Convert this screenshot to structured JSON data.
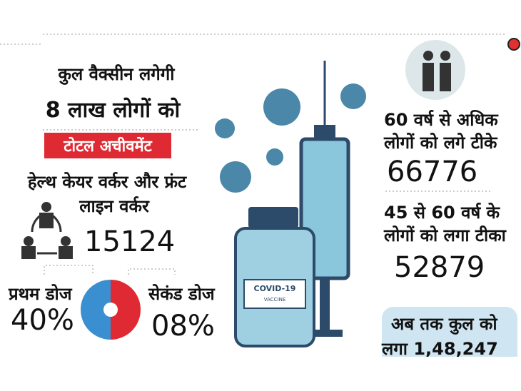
{
  "header": {
    "line1": "कुल वैक्सीन लगेगी",
    "line2": "8 लाख लोगों को"
  },
  "badge": "टोटल अचीवमेंट",
  "health_workers": {
    "label1": "हेल्थ केयर वर्कर और फ्रंट",
    "label2": "लाइन वर्कर",
    "count": "15124"
  },
  "doses": {
    "first_label": "प्रथम डोज",
    "first_value": "40%",
    "second_label": "सेकंड डोज",
    "second_value": "08%"
  },
  "senior": {
    "label1": "60 वर्ष से अधिक",
    "label2": "लोगों को लगे टीके",
    "count": "66776"
  },
  "middle_age": {
    "label1": "45 से 60 वर्ष के",
    "label2": "लोगों को लगा टीका",
    "count": "52879"
  },
  "total": {
    "label1": "अब तक कुल को",
    "label2": "लगा 1,48,247"
  },
  "vial": {
    "line1": "COVID-19",
    "line2": "VACCINE"
  }
}
